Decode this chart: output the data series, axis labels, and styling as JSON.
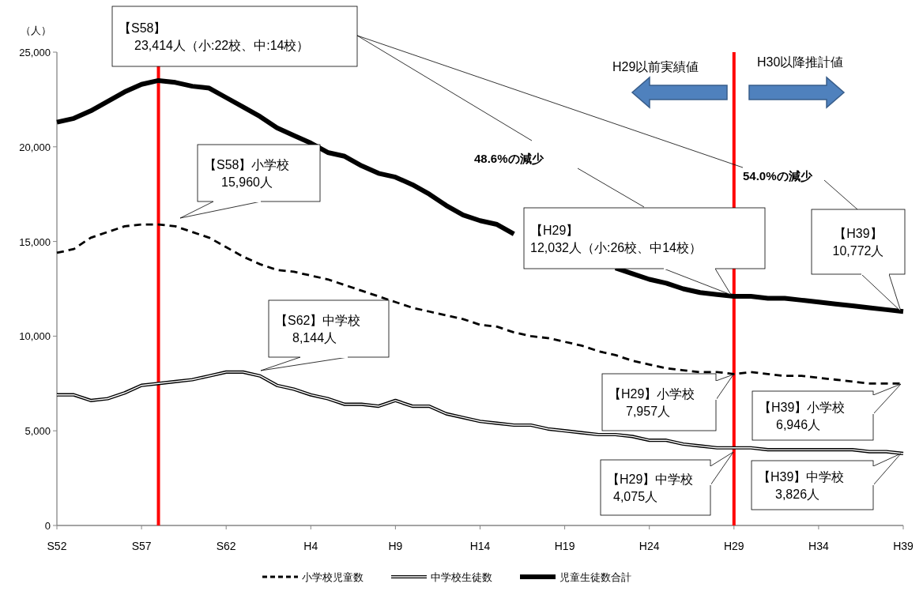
{
  "chart_data": {
    "type": "line",
    "ylabel": "（人）",
    "legend": "bottom",
    "marker": "none",
    "categories": [
      "S52",
      null,
      null,
      null,
      null,
      "S57",
      null,
      null,
      null,
      null,
      "S62",
      null,
      null,
      null,
      null,
      "H4",
      null,
      null,
      null,
      null,
      "H9",
      null,
      null,
      null,
      null,
      "H14",
      null,
      null,
      null,
      null,
      "H19",
      null,
      null,
      null,
      null,
      "H24",
      null,
      null,
      null,
      null,
      "H29",
      null,
      null,
      null,
      null,
      "H34",
      null,
      null,
      null,
      null,
      "H39"
    ],
    "ylim": [
      0,
      25000
    ],
    "yticks": [
      0,
      {
        "value": 5000,
        "label": "5,000"
      },
      {
        "value": 10000,
        "label": "10,000"
      },
      {
        "value": 15000,
        "label": "15,000"
      },
      {
        "value": 20000,
        "label": "20,000"
      },
      {
        "value": 25000,
        "label": "25,000"
      }
    ],
    "series": [
      {
        "name": "小学校児童数",
        "color": "#000000",
        "line_style": "dashed",
        "values": [
          14400,
          14600,
          15200,
          15500,
          15800,
          15900,
          15900,
          15800,
          15500,
          15200,
          14700,
          14200,
          13800,
          13500,
          13400,
          13200,
          13000,
          12700,
          12400,
          12100,
          11800,
          11500,
          11300,
          11100,
          10900,
          10600,
          10500,
          10200,
          10000,
          9900,
          9700,
          9500,
          9200,
          9000,
          8700,
          8500,
          8300,
          8200,
          8100,
          8100,
          8000,
          8100,
          8000,
          7900,
          7900,
          7800,
          7700,
          7600,
          7500,
          7500,
          7500
        ]
      },
      {
        "name": "中学校生徒数",
        "color": "#000000",
        "line_style": "solid",
        "values": [
          6900,
          6900,
          6600,
          6700,
          7000,
          7400,
          7500,
          7600,
          7700,
          7900,
          8100,
          8100,
          7900,
          7400,
          7200,
          6900,
          6700,
          6400,
          6400,
          6300,
          6600,
          6300,
          6300,
          5900,
          5700,
          5500,
          5400,
          5300,
          5300,
          5100,
          5000,
          4900,
          4800,
          4800,
          4700,
          4500,
          4500,
          4300,
          4200,
          4100,
          4100,
          4100,
          4000,
          4000,
          4000,
          4000,
          4000,
          4000,
          3900,
          3900,
          3800
        ]
      },
      {
        "name": "児童生徒数合計",
        "color": "#000000",
        "line_style": "solid",
        "values": [
          21300,
          21500,
          21900,
          22400,
          22900,
          23300,
          23500,
          23400,
          23200,
          23100,
          22600,
          22100,
          21600,
          21000,
          20600,
          20200,
          19700,
          19500,
          19000,
          18600,
          18400,
          18000,
          17500,
          16900,
          16400,
          16100,
          15900,
          15400,
          null,
          null,
          null,
          null,
          null,
          13600,
          13300,
          13000,
          12800,
          12500,
          12300,
          12200,
          12100,
          12100,
          12000,
          12000,
          11900,
          11800,
          11700,
          11600,
          11500,
          11400,
          11300
        ]
      }
    ],
    "annotations": [
      "【S58】\n23,414人（小:22校、中:14校）",
      "【S58】小学校\n15,960人",
      "【S62】中学校\n8,144人",
      "【H29】\n12,032人（小:26校、中14校）",
      "【H39】\n10,772人",
      "【H29】小学校\n7,957人",
      "【H39】小学校\n6,946人",
      "【H29】中学校\n4,075人",
      "【H39】中学校\n3,826人",
      "48.6%の減少",
      "54.0%の減少",
      "H29以前実績値",
      "H30以降推計値"
    ]
  }
}
